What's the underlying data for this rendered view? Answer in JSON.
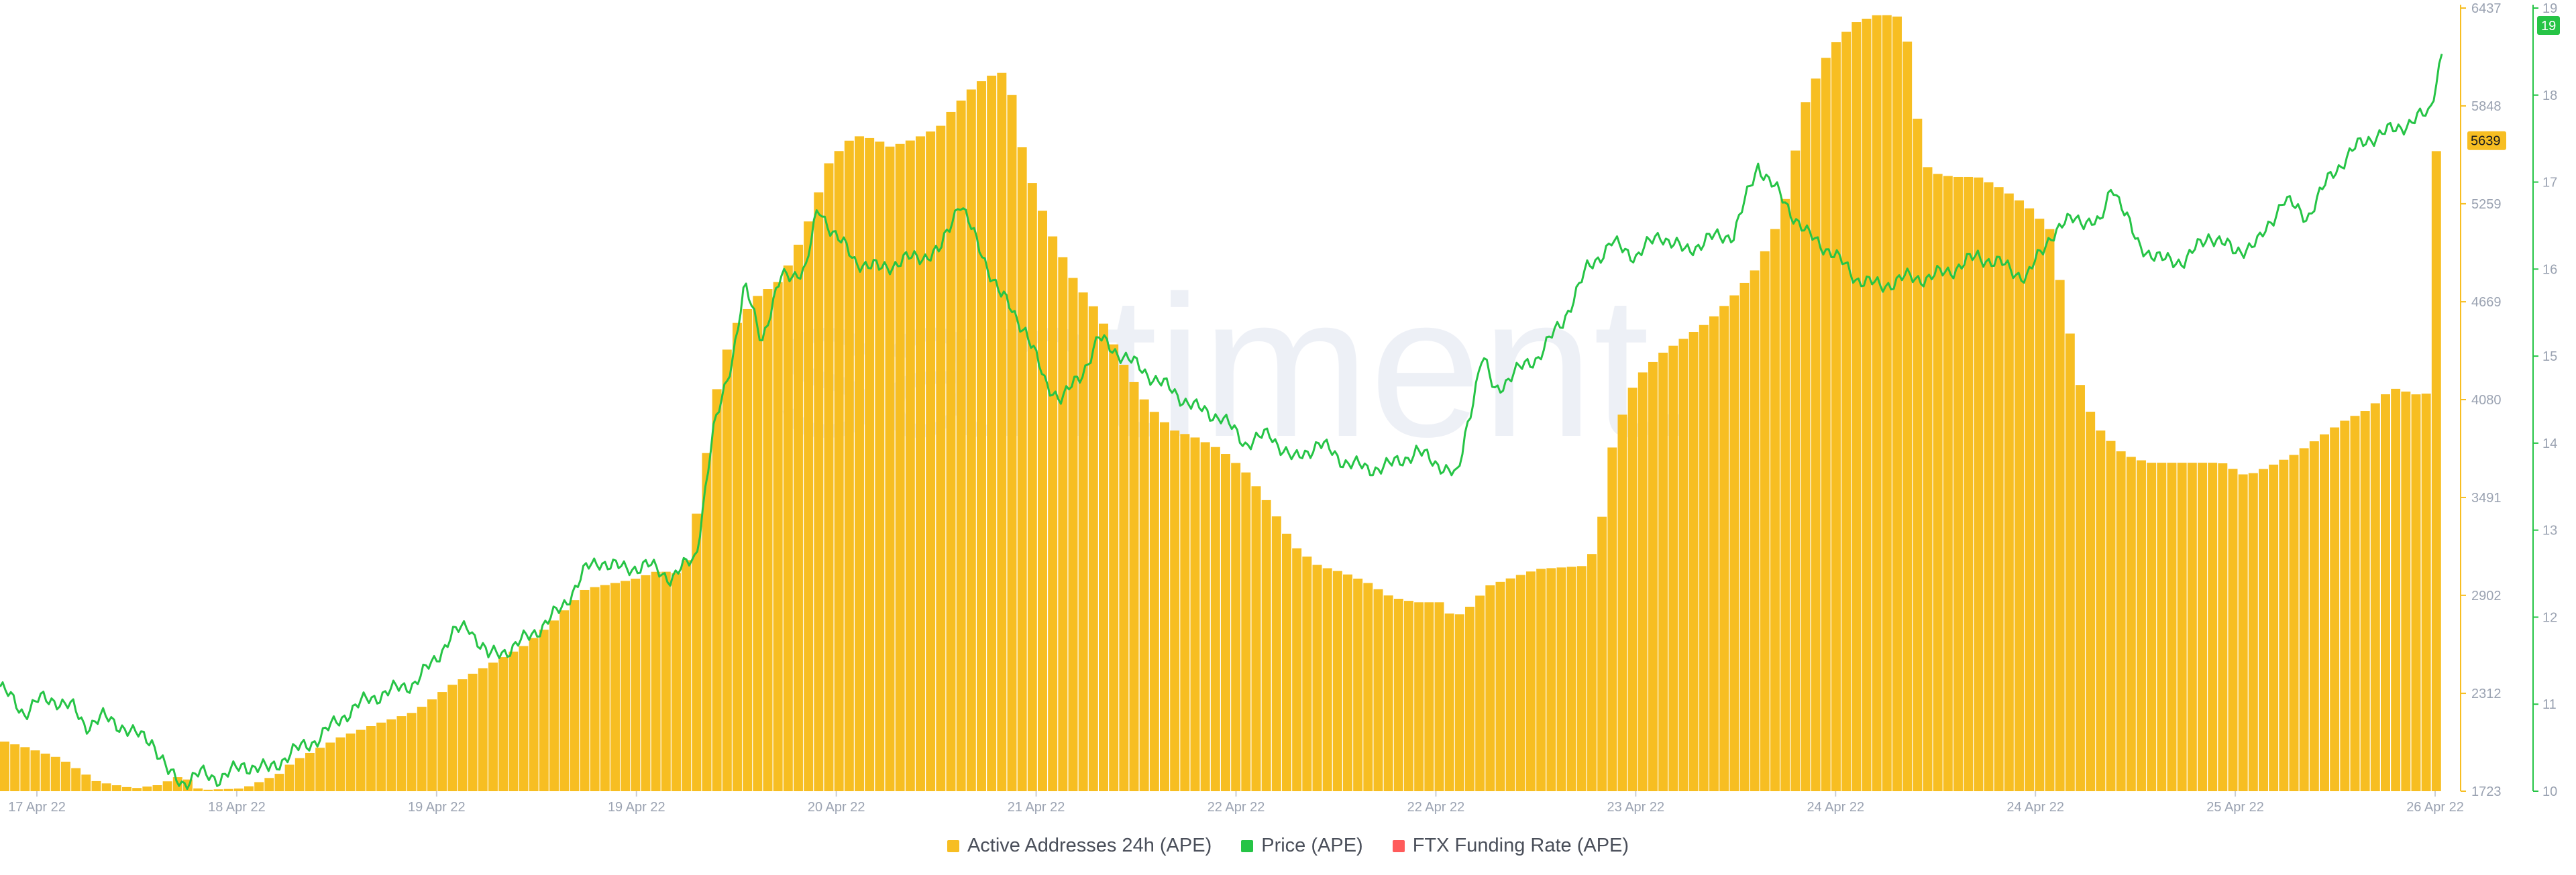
{
  "watermark": "santiment.",
  "chart_data": {
    "type": "bar+line",
    "x_ticks": [
      "17 Apr 22",
      "18 Apr 22",
      "19 Apr 22",
      "19 Apr 22",
      "20 Apr 22",
      "21 Apr 22",
      "22 Apr 22",
      "22 Apr 22",
      "23 Apr 22",
      "24 Apr 22",
      "24 Apr 22",
      "25 Apr 22",
      "26 Apr 22"
    ],
    "left_axis": {
      "name": "Active Addresses 24h (APE)",
      "ticks": [
        6437,
        5848,
        5259,
        4669,
        4080,
        3491,
        2902,
        2312,
        1723
      ],
      "ylim": [
        1723,
        6437
      ],
      "last_value_badge": "5639",
      "color": "#f7be22"
    },
    "right_axis": {
      "name": "Price (APE)",
      "ticks": [
        19,
        18,
        17,
        16,
        15,
        14,
        13,
        12,
        11,
        10
      ],
      "ylim": [
        10,
        19
      ],
      "last_value_badge": "19",
      "color": "#26c446"
    },
    "bar_series": {
      "name": "Active Addresses 24h (APE)",
      "color": "#f7be22",
      "x_range": [
        0,
        100
      ],
      "anchors": [
        [
          0,
          2030
        ],
        [
          1,
          1990
        ],
        [
          2.5,
          1920
        ],
        [
          4,
          1780
        ],
        [
          5.5,
          1740
        ],
        [
          6.5,
          1760
        ],
        [
          7.5,
          1820
        ],
        [
          8.2,
          1730
        ],
        [
          10,
          1740
        ],
        [
          11.5,
          1830
        ],
        [
          12,
          1900
        ],
        [
          14,
          2050
        ],
        [
          15.5,
          2130
        ],
        [
          17,
          2200
        ],
        [
          18.5,
          2360
        ],
        [
          20,
          2480
        ],
        [
          21.5,
          2600
        ],
        [
          22.5,
          2720
        ],
        [
          24,
          2940
        ],
        [
          25,
          2970
        ],
        [
          26,
          3000
        ],
        [
          27,
          3050
        ],
        [
          28,
          3030
        ],
        [
          28.7,
          3500
        ],
        [
          29.3,
          4100
        ],
        [
          30,
          4500
        ],
        [
          31,
          4700
        ],
        [
          32,
          4800
        ],
        [
          33,
          5100
        ],
        [
          34,
          5520
        ],
        [
          35,
          5670
        ],
        [
          35.8,
          5650
        ],
        [
          36.5,
          5600
        ],
        [
          37.5,
          5650
        ],
        [
          38.5,
          5720
        ],
        [
          39,
          5820
        ],
        [
          40,
          5980
        ],
        [
          41,
          6060
        ],
        [
          41.5,
          5900
        ],
        [
          42,
          5500
        ],
        [
          43,
          5100
        ],
        [
          44,
          4800
        ],
        [
          45,
          4600
        ],
        [
          46,
          4300
        ],
        [
          47,
          4050
        ],
        [
          48,
          3900
        ],
        [
          49,
          3850
        ],
        [
          50,
          3780
        ],
        [
          51,
          3650
        ],
        [
          52,
          3450
        ],
        [
          53,
          3200
        ],
        [
          54,
          3080
        ],
        [
          55,
          3040
        ],
        [
          56,
          2980
        ],
        [
          57,
          2890
        ],
        [
          58,
          2860
        ],
        [
          59,
          2860
        ],
        [
          59.5,
          2770
        ],
        [
          60,
          2800
        ],
        [
          61,
          2960
        ],
        [
          62,
          3010
        ],
        [
          63,
          3060
        ],
        [
          64,
          3070
        ],
        [
          65,
          3080
        ],
        [
          65.5,
          3250
        ],
        [
          66.1,
          3850
        ],
        [
          67,
          4200
        ],
        [
          68,
          4350
        ],
        [
          69,
          4450
        ],
        [
          70,
          4550
        ],
        [
          71,
          4700
        ],
        [
          72,
          4880
        ],
        [
          73,
          5200
        ],
        [
          74,
          5900
        ],
        [
          75,
          6200
        ],
        [
          76,
          6350
        ],
        [
          77,
          6400
        ],
        [
          78,
          6380
        ],
        [
          78.5,
          5800
        ],
        [
          79,
          5450
        ],
        [
          80,
          5420
        ],
        [
          81,
          5420
        ],
        [
          82,
          5350
        ],
        [
          83,
          5250
        ],
        [
          84,
          5100
        ],
        [
          84.6,
          4620
        ],
        [
          85.3,
          4100
        ],
        [
          86,
          3900
        ],
        [
          87,
          3750
        ],
        [
          88,
          3700
        ],
        [
          89,
          3700
        ],
        [
          90,
          3700
        ],
        [
          91,
          3700
        ],
        [
          92,
          3620
        ],
        [
          93,
          3680
        ],
        [
          94,
          3750
        ],
        [
          95,
          3850
        ],
        [
          96,
          3950
        ],
        [
          97,
          4020
        ],
        [
          98,
          4150
        ],
        [
          99,
          4110
        ],
        [
          99.6,
          4120
        ],
        [
          99.8,
          5639
        ],
        [
          100,
          5639
        ]
      ]
    },
    "line_series": {
      "name": "Price (APE)",
      "color": "#26c446",
      "x_range": [
        0,
        100
      ],
      "anchors": [
        [
          0,
          11.2
        ],
        [
          0.5,
          11.05
        ],
        [
          1,
          10.9
        ],
        [
          1.6,
          11.05
        ],
        [
          2.3,
          11.05
        ],
        [
          3,
          10.95
        ],
        [
          3.5,
          10.75
        ],
        [
          4.2,
          10.85
        ],
        [
          5,
          10.75
        ],
        [
          5.5,
          10.65
        ],
        [
          6.2,
          10.6
        ],
        [
          6.9,
          10.2
        ],
        [
          7.5,
          10.1
        ],
        [
          8.2,
          10.2
        ],
        [
          9,
          10.15
        ],
        [
          10,
          10.3
        ],
        [
          11,
          10.25
        ],
        [
          12,
          10.45
        ],
        [
          13,
          10.6
        ],
        [
          14,
          10.85
        ],
        [
          15,
          11.05
        ],
        [
          16,
          11.15
        ],
        [
          17,
          11.25
        ],
        [
          17.8,
          11.5
        ],
        [
          18.5,
          11.8
        ],
        [
          19.2,
          11.9
        ],
        [
          20,
          11.55
        ],
        [
          21,
          11.65
        ],
        [
          22,
          11.85
        ],
        [
          23,
          12.1
        ],
        [
          24,
          12.55
        ],
        [
          24.6,
          12.65
        ],
        [
          25.5,
          12.55
        ],
        [
          26.5,
          12.6
        ],
        [
          27.5,
          12.45
        ],
        [
          28.5,
          12.7
        ],
        [
          29.2,
          14.1
        ],
        [
          30,
          15.0
        ],
        [
          30.5,
          15.8
        ],
        [
          31.2,
          15.2
        ],
        [
          32,
          15.9
        ],
        [
          33,
          16.0
        ],
        [
          33.5,
          16.7
        ],
        [
          34.2,
          16.4
        ],
        [
          35,
          16.1
        ],
        [
          36,
          16.0
        ],
        [
          37,
          16.1
        ],
        [
          38.5,
          16.2
        ],
        [
          39.3,
          16.8
        ],
        [
          40,
          16.3
        ],
        [
          41,
          15.7
        ],
        [
          42,
          15.3
        ],
        [
          42.8,
          14.7
        ],
        [
          43.5,
          14.5
        ],
        [
          44.3,
          14.8
        ],
        [
          45,
          15.2
        ],
        [
          46,
          15.0
        ],
        [
          47,
          14.8
        ],
        [
          48,
          14.6
        ],
        [
          49,
          14.4
        ],
        [
          50,
          14.3
        ],
        [
          51,
          14.0
        ],
        [
          52,
          14.1
        ],
        [
          53,
          13.8
        ],
        [
          54,
          14.0
        ],
        [
          55,
          13.8
        ],
        [
          56,
          13.7
        ],
        [
          57,
          13.75
        ],
        [
          58,
          13.9
        ],
        [
          59,
          13.75
        ],
        [
          59.7,
          13.6
        ],
        [
          60,
          14.1
        ],
        [
          60.7,
          15.0
        ],
        [
          61.2,
          14.6
        ],
        [
          62,
          14.8
        ],
        [
          63,
          15.0
        ],
        [
          64,
          15.4
        ],
        [
          65,
          16.0
        ],
        [
          66,
          16.3
        ],
        [
          67,
          16.15
        ],
        [
          68,
          16.4
        ],
        [
          69,
          16.2
        ],
        [
          70,
          16.35
        ],
        [
          71,
          16.4
        ],
        [
          72,
          17.2
        ],
        [
          73,
          16.8
        ],
        [
          74,
          16.4
        ],
        [
          75,
          16.2
        ],
        [
          76,
          15.9
        ],
        [
          77,
          15.8
        ],
        [
          78,
          15.9
        ],
        [
          79,
          15.9
        ],
        [
          80,
          16.0
        ],
        [
          81,
          16.15
        ],
        [
          82,
          16.05
        ],
        [
          83,
          15.9
        ],
        [
          84,
          16.4
        ],
        [
          85,
          16.6
        ],
        [
          86,
          16.5
        ],
        [
          86.5,
          17.0
        ],
        [
          87.5,
          16.3
        ],
        [
          88.5,
          16.1
        ],
        [
          89.5,
          16.1
        ],
        [
          90.5,
          16.4
        ],
        [
          91.5,
          16.2
        ],
        [
          92.5,
          16.3
        ],
        [
          93.5,
          16.8
        ],
        [
          94.5,
          16.6
        ],
        [
          95.5,
          17.1
        ],
        [
          96.5,
          17.4
        ],
        [
          97,
          17.5
        ],
        [
          98,
          17.6
        ],
        [
          98.8,
          17.7
        ],
        [
          99.5,
          17.8
        ],
        [
          100,
          18.5
        ]
      ]
    },
    "legend": [
      {
        "label": "Active Addresses 24h (APE)",
        "color": "#f7be22"
      },
      {
        "label": "Price (APE)",
        "color": "#26c446"
      },
      {
        "label": "FTX Funding Rate (APE)",
        "color": "#ff5b5b"
      }
    ],
    "legend_position": "bottom-center",
    "grid": false
  }
}
